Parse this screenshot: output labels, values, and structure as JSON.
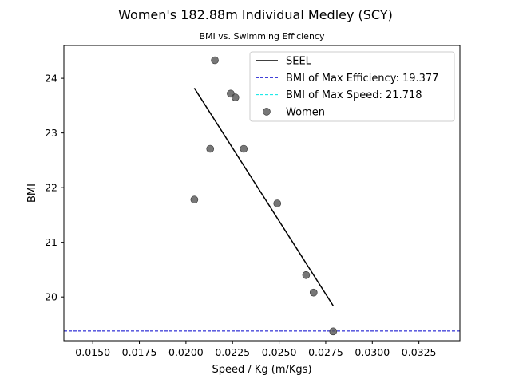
{
  "chart_data": {
    "type": "scatter",
    "title": "Women's 182.88m Individual Medley (SCY)",
    "subtitle": "BMI vs. Swimming Efficiency",
    "xlabel": "Speed / Kg (m/Kgs)",
    "ylabel": "BMI",
    "xlim": [
      0.01345,
      0.0347
    ],
    "ylim": [
      19.2,
      24.6
    ],
    "xticks": [
      0.015,
      0.0175,
      0.02,
      0.0225,
      0.025,
      0.0275,
      0.03,
      0.0325
    ],
    "xtick_labels": [
      "0.0150",
      "0.0175",
      "0.0200",
      "0.0225",
      "0.0250",
      "0.0275",
      "0.0300",
      "0.0325"
    ],
    "yticks": [
      20,
      21,
      22,
      23,
      24
    ],
    "ytick_labels": [
      "20",
      "21",
      "22",
      "23",
      "24"
    ],
    "grid": false,
    "legend_position": "top-right",
    "series": [
      {
        "name": "Women",
        "kind": "scatter",
        "color": "#555555",
        "points": [
          {
            "x": 0.02155,
            "y": 24.33
          },
          {
            "x": 0.0224,
            "y": 23.72
          },
          {
            "x": 0.02265,
            "y": 23.65
          },
          {
            "x": 0.0213,
            "y": 22.71
          },
          {
            "x": 0.0231,
            "y": 22.71
          },
          {
            "x": 0.02045,
            "y": 21.78
          },
          {
            "x": 0.0249,
            "y": 21.71
          },
          {
            "x": 0.02645,
            "y": 20.4
          },
          {
            "x": 0.02685,
            "y": 20.08
          },
          {
            "x": 0.0279,
            "y": 19.37
          }
        ]
      },
      {
        "name": "SEEL",
        "kind": "line",
        "color": "#000000",
        "points": [
          {
            "x": 0.02045,
            "y": 23.82
          },
          {
            "x": 0.0279,
            "y": 19.84
          }
        ]
      }
    ],
    "reference_lines": [
      {
        "name": "BMI of Max Efficiency: 19.377",
        "y": 19.377,
        "color": "#0000cc",
        "style": "dashed"
      },
      {
        "name": "BMI of Max Speed: 21.718",
        "y": 21.718,
        "color": "#00e5e5",
        "style": "dashed"
      }
    ],
    "legend": [
      {
        "label": "SEEL",
        "kind": "line",
        "color": "#000000"
      },
      {
        "label": "BMI of Max Efficiency: 19.377",
        "kind": "dashed",
        "color": "#0000cc"
      },
      {
        "label": "BMI of Max Speed: 21.718",
        "kind": "dashed",
        "color": "#00e5e5"
      },
      {
        "label": "Women",
        "kind": "marker",
        "color": "#555555"
      }
    ]
  }
}
